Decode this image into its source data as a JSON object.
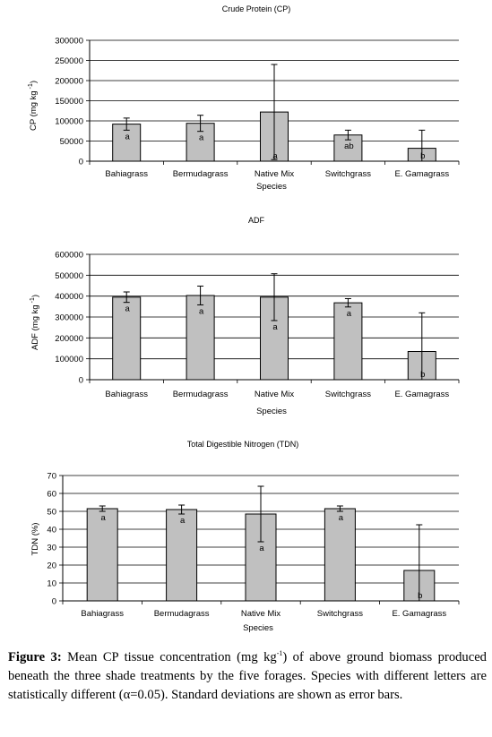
{
  "chart_data": [
    {
      "type": "bar",
      "title": "Crude Protein (CP)",
      "xlabel": "Species",
      "ylabel": "CP (mg kg",
      "ylabel_sup": "-1",
      "ylabel_close": ")",
      "ylim": [
        0,
        300000
      ],
      "ytick_step": 50000,
      "ytick_labels": [
        "0",
        "50000",
        "100000",
        "150000",
        "200000",
        "250000",
        "300000"
      ],
      "categories": [
        "Bahiagrass",
        "Bermudagrass",
        "Native Mix",
        "Switchgrass",
        "E. Gamagrass"
      ],
      "values": [
        92000,
        94000,
        122000,
        65000,
        32000
      ],
      "errors": [
        15000,
        20000,
        118000,
        12000,
        45000
      ],
      "letters": [
        "a",
        "a",
        "a",
        "ab",
        "b"
      ],
      "grid": true
    },
    {
      "type": "bar",
      "title": "ADF",
      "xlabel": "Species",
      "ylabel": "ADF (mg kg",
      "ylabel_sup": "-1",
      "ylabel_close": ")",
      "ylim": [
        0,
        600000
      ],
      "ytick_step": 100000,
      "ytick_labels": [
        "0",
        "100000",
        "200000",
        "300000",
        "400000",
        "500000",
        "600000"
      ],
      "categories": [
        "Bahiagrass",
        "Bermudagrass",
        "Native Mix",
        "Switchgrass",
        "E. Gamagrass"
      ],
      "values": [
        395000,
        403000,
        395000,
        368000,
        135000
      ],
      "errors": [
        25000,
        45000,
        112000,
        20000,
        185000
      ],
      "letters": [
        "a",
        "a",
        "a",
        "a",
        "b"
      ],
      "grid": true
    },
    {
      "type": "bar",
      "title": "Total Digestible Nitrogen (TDN)",
      "xlabel": "Species",
      "ylabel": "TDN (%)",
      "ylim": [
        0,
        70
      ],
      "ytick_step": 10,
      "ytick_labels": [
        "0",
        "10",
        "20",
        "30",
        "40",
        "50",
        "60",
        "70"
      ],
      "categories": [
        "Bahiagrass",
        "Bermudagrass",
        "Native Mix",
        "Switchgrass",
        "E. Gamagrass"
      ],
      "values": [
        51.5,
        51,
        48.5,
        51.5,
        17
      ],
      "errors": [
        1.5,
        2.5,
        15.5,
        1.5,
        25.5
      ],
      "letters": [
        "a",
        "a",
        "a",
        "a",
        "b"
      ],
      "grid": true
    }
  ],
  "caption": {
    "label": "Figure 3:",
    "text_before_sup": " Mean CP tissue concentration (mg kg",
    "sup": "-1",
    "text_after_sup": ") of above ground biomass produced beneath the three shade treatments by the five forages. Species with different letters are statistically different (α=0.05).  Standard deviations are shown as error bars."
  },
  "colors": {
    "bar_fill": "#c0c0c0",
    "bar_stroke": "#000000",
    "grid": "#000000"
  }
}
